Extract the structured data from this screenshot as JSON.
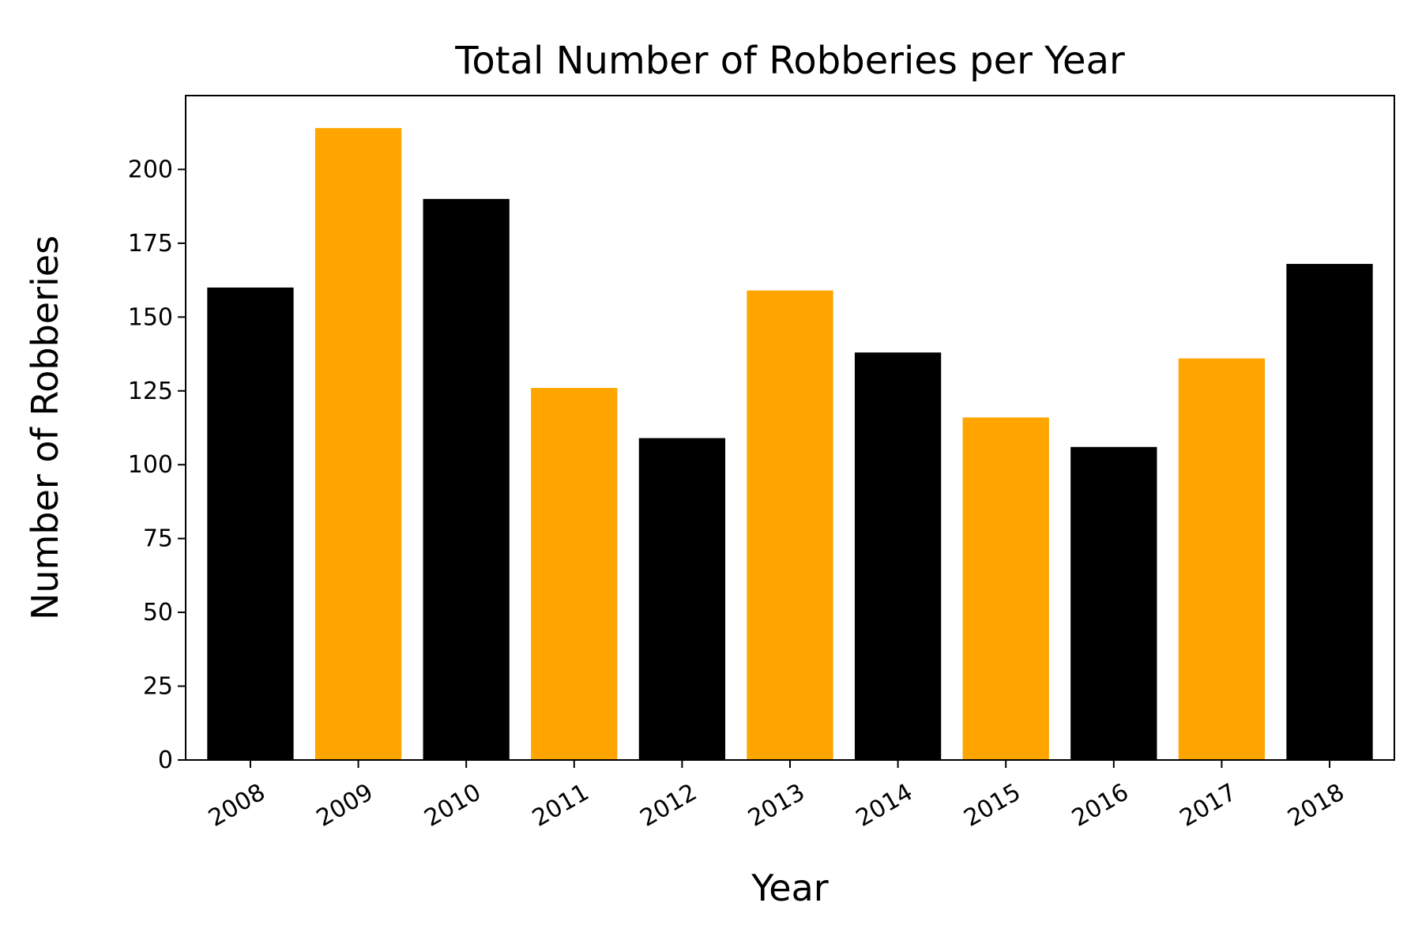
{
  "chart_data": {
    "type": "bar",
    "title": "Total Number of Robberies per Year",
    "xlabel": "Year",
    "ylabel": "Number of Robberies",
    "categories": [
      "2008",
      "2009",
      "2010",
      "2011",
      "2012",
      "2013",
      "2014",
      "2015",
      "2016",
      "2017",
      "2018"
    ],
    "values": [
      160,
      214,
      190,
      126,
      109,
      159,
      138,
      116,
      106,
      136,
      168
    ],
    "bar_colors": [
      "#000000",
      "#ffa500",
      "#000000",
      "#ffa500",
      "#000000",
      "#ffa500",
      "#000000",
      "#ffa500",
      "#000000",
      "#ffa500",
      "#000000"
    ],
    "ylim": [
      0,
      225
    ],
    "yticks": [
      0,
      25,
      50,
      75,
      100,
      125,
      150,
      175,
      200
    ],
    "x_tick_rotation_deg": 30,
    "grid": false,
    "legend": "none"
  }
}
